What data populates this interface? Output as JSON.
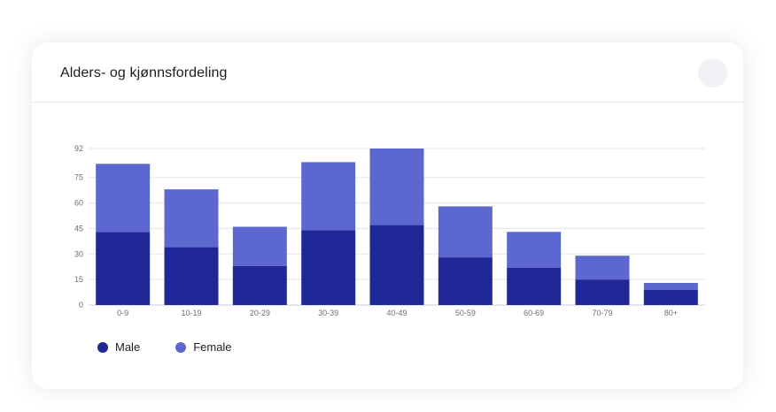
{
  "card": {
    "title": "Alders- og kjønnsfordeling"
  },
  "chart_data": {
    "type": "bar",
    "stacked": true,
    "categories": [
      "0-9",
      "10-19",
      "20-29",
      "30-39",
      "40-49",
      "50-59",
      "60-69",
      "70-79",
      "80+"
    ],
    "series": [
      {
        "name": "Male",
        "color": "#1f2896",
        "values": [
          43,
          34,
          23,
          44,
          47,
          28,
          22,
          15,
          9
        ]
      },
      {
        "name": "Female",
        "color": "#5c67cf",
        "values": [
          40,
          34,
          23,
          40,
          45,
          30,
          21,
          14,
          4
        ]
      }
    ],
    "yticks": [
      0,
      15,
      30,
      45,
      60,
      75,
      92
    ],
    "ylim": [
      0,
      92
    ],
    "grid": true,
    "legend": "bottom-left",
    "title": "",
    "xlabel": "",
    "ylabel": ""
  },
  "legend": {
    "items": [
      {
        "label": "Male",
        "color": "#1f2896"
      },
      {
        "label": "Female",
        "color": "#5c67cf"
      }
    ]
  }
}
